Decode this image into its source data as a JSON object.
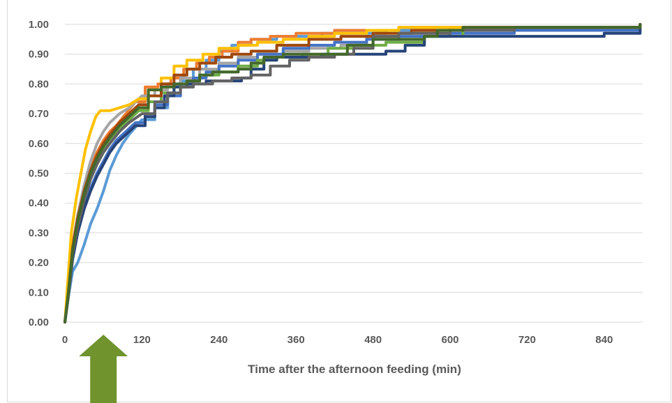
{
  "chart_data": {
    "type": "line",
    "title": "",
    "xlabel": "Time after the afternoon feeding (min)",
    "ylabel": "",
    "xlim": [
      0,
      900
    ],
    "ylim": [
      0,
      1
    ],
    "x_ticks": [
      "0",
      "120",
      "240",
      "360",
      "480",
      "600",
      "720",
      "840"
    ],
    "x_tick_values": [
      0,
      120,
      240,
      360,
      480,
      600,
      720,
      840
    ],
    "y_ticks": [
      "0.00",
      "0.10",
      "0.20",
      "0.30",
      "0.40",
      "0.50",
      "0.60",
      "0.70",
      "0.80",
      "0.90",
      "1.00"
    ],
    "y_tick_values": [
      0,
      0.1,
      0.2,
      0.3,
      0.4,
      0.5,
      0.6,
      0.7,
      0.8,
      0.9,
      1.0
    ],
    "grid": "horizontal",
    "legend": "none",
    "arrow_annotation": {
      "x": 60,
      "color": "#70932e"
    },
    "series": [
      {
        "color": "#5b9bd5",
        "points": [
          [
            0,
            0
          ],
          [
            5,
            0.08
          ],
          [
            12,
            0.17
          ],
          [
            20,
            0.2
          ],
          [
            30,
            0.26
          ],
          [
            40,
            0.33
          ],
          [
            50,
            0.38
          ],
          [
            60,
            0.44
          ],
          [
            70,
            0.51
          ],
          [
            80,
            0.56
          ],
          [
            90,
            0.6
          ],
          [
            100,
            0.63
          ],
          [
            120,
            0.68
          ],
          [
            140,
            0.72
          ],
          [
            160,
            0.76
          ],
          [
            180,
            0.81
          ],
          [
            200,
            0.85
          ],
          [
            220,
            0.88
          ],
          [
            240,
            0.91
          ],
          [
            260,
            0.93
          ],
          [
            290,
            0.95
          ],
          [
            330,
            0.96
          ],
          [
            400,
            0.97
          ],
          [
            500,
            0.98
          ],
          [
            600,
            0.99
          ],
          [
            700,
            0.99
          ],
          [
            896,
            1.0
          ]
        ]
      },
      {
        "color": "#ed7d31",
        "points": [
          [
            0,
            0
          ],
          [
            5,
            0.1
          ],
          [
            12,
            0.26
          ],
          [
            20,
            0.36
          ],
          [
            30,
            0.45
          ],
          [
            40,
            0.52
          ],
          [
            50,
            0.57
          ],
          [
            60,
            0.61
          ],
          [
            70,
            0.64
          ],
          [
            80,
            0.66
          ],
          [
            95,
            0.7
          ],
          [
            110,
            0.74
          ],
          [
            125,
            0.79
          ],
          [
            145,
            0.8
          ],
          [
            165,
            0.82
          ],
          [
            185,
            0.85
          ],
          [
            205,
            0.87
          ],
          [
            225,
            0.89
          ],
          [
            245,
            0.91
          ],
          [
            270,
            0.94
          ],
          [
            290,
            0.95
          ],
          [
            320,
            0.96
          ],
          [
            360,
            0.97
          ],
          [
            420,
            0.98
          ],
          [
            520,
            0.99
          ],
          [
            600,
            0.99
          ],
          [
            896,
            1.0
          ]
        ]
      },
      {
        "color": "#a5a5a5",
        "points": [
          [
            0,
            0
          ],
          [
            5,
            0.09
          ],
          [
            12,
            0.25
          ],
          [
            20,
            0.36
          ],
          [
            30,
            0.46
          ],
          [
            40,
            0.54
          ],
          [
            50,
            0.6
          ],
          [
            60,
            0.64
          ],
          [
            70,
            0.67
          ],
          [
            85,
            0.7
          ],
          [
            100,
            0.72
          ],
          [
            120,
            0.76
          ],
          [
            140,
            0.78
          ],
          [
            160,
            0.8
          ],
          [
            180,
            0.82
          ],
          [
            210,
            0.85
          ],
          [
            240,
            0.87
          ],
          [
            270,
            0.89
          ],
          [
            300,
            0.9
          ],
          [
            340,
            0.91
          ],
          [
            380,
            0.92
          ],
          [
            430,
            0.93
          ],
          [
            470,
            0.96
          ],
          [
            520,
            0.97
          ],
          [
            600,
            0.98
          ],
          [
            700,
            0.99
          ],
          [
            896,
            1.0
          ]
        ]
      },
      {
        "color": "#ffc000",
        "points": [
          [
            0,
            0
          ],
          [
            4,
            0.12
          ],
          [
            10,
            0.3
          ],
          [
            18,
            0.42
          ],
          [
            25,
            0.5
          ],
          [
            32,
            0.58
          ],
          [
            40,
            0.64
          ],
          [
            48,
            0.69
          ],
          [
            55,
            0.71
          ],
          [
            70,
            0.71
          ],
          [
            85,
            0.72
          ],
          [
            100,
            0.73
          ],
          [
            115,
            0.75
          ],
          [
            130,
            0.78
          ],
          [
            150,
            0.82
          ],
          [
            170,
            0.86
          ],
          [
            190,
            0.88
          ],
          [
            215,
            0.9
          ],
          [
            240,
            0.92
          ],
          [
            270,
            0.93
          ],
          [
            300,
            0.94
          ],
          [
            340,
            0.95
          ],
          [
            380,
            0.96
          ],
          [
            420,
            0.97
          ],
          [
            470,
            0.98
          ],
          [
            520,
            0.99
          ],
          [
            600,
            0.99
          ],
          [
            896,
            1.0
          ]
        ]
      },
      {
        "color": "#4472c4",
        "points": [
          [
            0,
            0
          ],
          [
            5,
            0.08
          ],
          [
            12,
            0.22
          ],
          [
            20,
            0.31
          ],
          [
            30,
            0.39
          ],
          [
            40,
            0.45
          ],
          [
            50,
            0.5
          ],
          [
            60,
            0.54
          ],
          [
            70,
            0.58
          ],
          [
            80,
            0.61
          ],
          [
            95,
            0.64
          ],
          [
            110,
            0.67
          ],
          [
            125,
            0.7
          ],
          [
            140,
            0.73
          ],
          [
            160,
            0.76
          ],
          [
            180,
            0.79
          ],
          [
            200,
            0.82
          ],
          [
            220,
            0.84
          ],
          [
            240,
            0.86
          ],
          [
            270,
            0.88
          ],
          [
            300,
            0.9
          ],
          [
            340,
            0.92
          ],
          [
            380,
            0.93
          ],
          [
            420,
            0.94
          ],
          [
            470,
            0.95
          ],
          [
            520,
            0.96
          ],
          [
            600,
            0.97
          ],
          [
            700,
            0.98
          ],
          [
            896,
            1.0
          ]
        ]
      },
      {
        "color": "#70ad47",
        "points": [
          [
            0,
            0
          ],
          [
            5,
            0.09
          ],
          [
            12,
            0.24
          ],
          [
            20,
            0.33
          ],
          [
            30,
            0.42
          ],
          [
            40,
            0.49
          ],
          [
            50,
            0.54
          ],
          [
            60,
            0.58
          ],
          [
            70,
            0.61
          ],
          [
            85,
            0.65
          ],
          [
            100,
            0.68
          ],
          [
            115,
            0.71
          ],
          [
            130,
            0.74
          ],
          [
            150,
            0.77
          ],
          [
            170,
            0.79
          ],
          [
            190,
            0.81
          ],
          [
            210,
            0.83
          ],
          [
            240,
            0.84
          ],
          [
            270,
            0.86
          ],
          [
            300,
            0.88
          ],
          [
            330,
            0.89
          ],
          [
            370,
            0.9
          ],
          [
            410,
            0.92
          ],
          [
            450,
            0.93
          ],
          [
            500,
            0.94
          ],
          [
            560,
            0.96
          ],
          [
            620,
            0.98
          ],
          [
            700,
            0.99
          ],
          [
            896,
            1.0
          ]
        ]
      },
      {
        "color": "#264478",
        "points": [
          [
            0,
            0
          ],
          [
            5,
            0.08
          ],
          [
            12,
            0.21
          ],
          [
            20,
            0.3
          ],
          [
            30,
            0.38
          ],
          [
            40,
            0.44
          ],
          [
            50,
            0.49
          ],
          [
            60,
            0.53
          ],
          [
            70,
            0.57
          ],
          [
            80,
            0.6
          ],
          [
            95,
            0.63
          ],
          [
            110,
            0.66
          ],
          [
            125,
            0.69
          ],
          [
            140,
            0.72
          ],
          [
            155,
            0.76
          ],
          [
            170,
            0.79
          ],
          [
            190,
            0.8
          ],
          [
            220,
            0.81
          ],
          [
            250,
            0.81
          ],
          [
            275,
            0.82
          ],
          [
            290,
            0.85
          ],
          [
            310,
            0.88
          ],
          [
            330,
            0.89
          ],
          [
            360,
            0.89
          ],
          [
            400,
            0.9
          ],
          [
            440,
            0.9
          ],
          [
            500,
            0.91
          ],
          [
            530,
            0.93
          ],
          [
            560,
            0.96
          ],
          [
            620,
            0.96
          ],
          [
            700,
            0.96
          ],
          [
            800,
            0.96
          ],
          [
            840,
            0.97
          ],
          [
            896,
            1.0
          ]
        ]
      },
      {
        "color": "#9e480e",
        "points": [
          [
            0,
            0
          ],
          [
            5,
            0.09
          ],
          [
            12,
            0.25
          ],
          [
            20,
            0.35
          ],
          [
            30,
            0.44
          ],
          [
            40,
            0.51
          ],
          [
            50,
            0.56
          ],
          [
            60,
            0.6
          ],
          [
            70,
            0.63
          ],
          [
            85,
            0.67
          ],
          [
            100,
            0.7
          ],
          [
            115,
            0.73
          ],
          [
            130,
            0.76
          ],
          [
            150,
            0.8
          ],
          [
            170,
            0.83
          ],
          [
            190,
            0.85
          ],
          [
            210,
            0.87
          ],
          [
            235,
            0.89
          ],
          [
            260,
            0.9
          ],
          [
            290,
            0.91
          ],
          [
            330,
            0.93
          ],
          [
            380,
            0.95
          ],
          [
            430,
            0.96
          ],
          [
            480,
            0.97
          ],
          [
            540,
            0.98
          ],
          [
            620,
            0.99
          ],
          [
            896,
            1.0
          ]
        ]
      },
      {
        "color": "#636363",
        "points": [
          [
            0,
            0
          ],
          [
            5,
            0.08
          ],
          [
            12,
            0.23
          ],
          [
            20,
            0.32
          ],
          [
            30,
            0.41
          ],
          [
            40,
            0.48
          ],
          [
            50,
            0.53
          ],
          [
            60,
            0.57
          ],
          [
            70,
            0.6
          ],
          [
            85,
            0.64
          ],
          [
            100,
            0.67
          ],
          [
            120,
            0.7
          ],
          [
            140,
            0.74
          ],
          [
            160,
            0.77
          ],
          [
            180,
            0.79
          ],
          [
            200,
            0.8
          ],
          [
            230,
            0.81
          ],
          [
            260,
            0.82
          ],
          [
            290,
            0.83
          ],
          [
            320,
            0.86
          ],
          [
            350,
            0.88
          ],
          [
            380,
            0.89
          ],
          [
            420,
            0.9
          ],
          [
            450,
            0.92
          ],
          [
            480,
            0.96
          ],
          [
            520,
            0.97
          ],
          [
            600,
            0.98
          ],
          [
            700,
            0.99
          ],
          [
            896,
            1.0
          ]
        ]
      },
      {
        "color": "#43682b",
        "points": [
          [
            0,
            0
          ],
          [
            5,
            0.09
          ],
          [
            12,
            0.24
          ],
          [
            20,
            0.34
          ],
          [
            30,
            0.43
          ],
          [
            40,
            0.5
          ],
          [
            50,
            0.55
          ],
          [
            60,
            0.59
          ],
          [
            70,
            0.62
          ],
          [
            85,
            0.66
          ],
          [
            100,
            0.69
          ],
          [
            115,
            0.72
          ],
          [
            130,
            0.78
          ],
          [
            150,
            0.79
          ],
          [
            170,
            0.8
          ],
          [
            190,
            0.81
          ],
          [
            210,
            0.83
          ],
          [
            230,
            0.84
          ],
          [
            250,
            0.84
          ],
          [
            270,
            0.85
          ],
          [
            290,
            0.87
          ],
          [
            310,
            0.89
          ],
          [
            340,
            0.9
          ],
          [
            380,
            0.9
          ],
          [
            420,
            0.9
          ],
          [
            440,
            0.93
          ],
          [
            480,
            0.95
          ],
          [
            520,
            0.95
          ],
          [
            560,
            0.96
          ],
          [
            580,
            0.98
          ],
          [
            620,
            0.99
          ],
          [
            896,
            1.0
          ]
        ]
      }
    ]
  }
}
